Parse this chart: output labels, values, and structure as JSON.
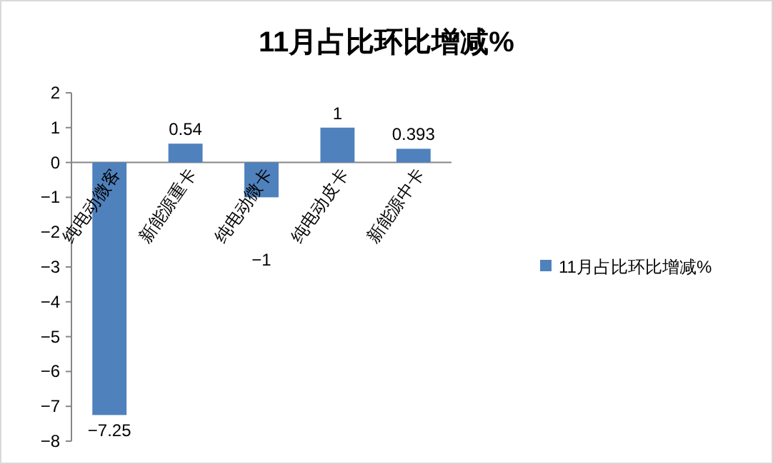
{
  "chart_data": {
    "type": "bar",
    "title": "11月占比环比增减%",
    "categories": [
      "纯电动微客",
      "新能源重卡",
      "纯电动微卡",
      "纯电动皮卡",
      "新能源中卡"
    ],
    "series": [
      {
        "name": "11月占比环比增减%",
        "color": "#4f81bd",
        "values": [
          -7.25,
          0.54,
          -1,
          1,
          0.393
        ]
      }
    ],
    "ylim": [
      -8,
      2
    ],
    "yticks": [
      -8,
      -7,
      -6,
      -5,
      -4,
      -3,
      -2,
      -1,
      0,
      1,
      2
    ],
    "data_labels": true,
    "legend": "right"
  }
}
